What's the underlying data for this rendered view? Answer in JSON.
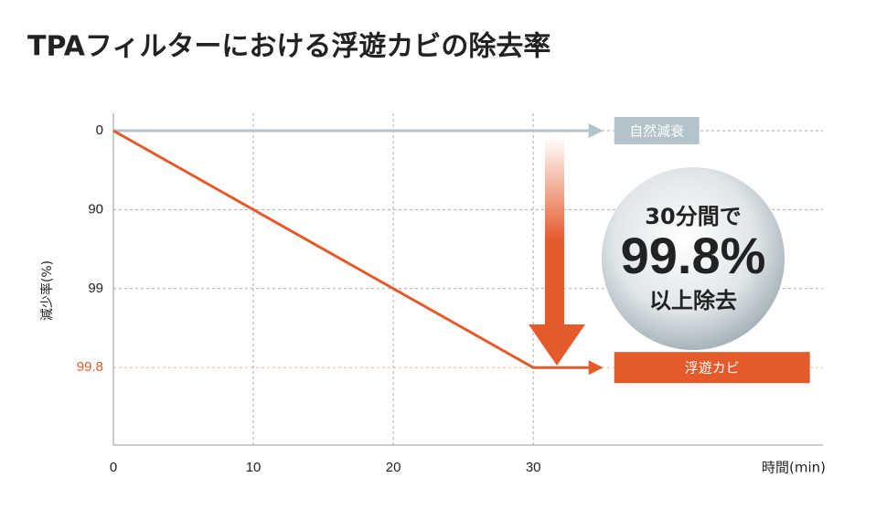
{
  "chart_data": {
    "type": "line",
    "title": "TPAフィルターにおける浮遊カビの除去率",
    "y_label": "減少率(%)",
    "x_label": "時間(min)",
    "xlim": [
      0,
      50.7
    ],
    "xticks": [
      0,
      10,
      20,
      30
    ],
    "yticks": [
      0,
      90,
      99,
      99.8
    ],
    "yscale": "ordinal",
    "grid": true,
    "series": [
      {
        "name": "自然減衰",
        "color": "#b3c3cb",
        "x": [
          0,
          35
        ],
        "values": [
          0,
          0
        ]
      },
      {
        "name": "浮遊カビ",
        "color": "#e55a2b",
        "x": [
          0,
          30,
          35
        ],
        "values": [
          0,
          99.8,
          99.8
        ]
      }
    ],
    "annotations": [
      "30分間で",
      "99.8%",
      "以上除去"
    ]
  }
}
